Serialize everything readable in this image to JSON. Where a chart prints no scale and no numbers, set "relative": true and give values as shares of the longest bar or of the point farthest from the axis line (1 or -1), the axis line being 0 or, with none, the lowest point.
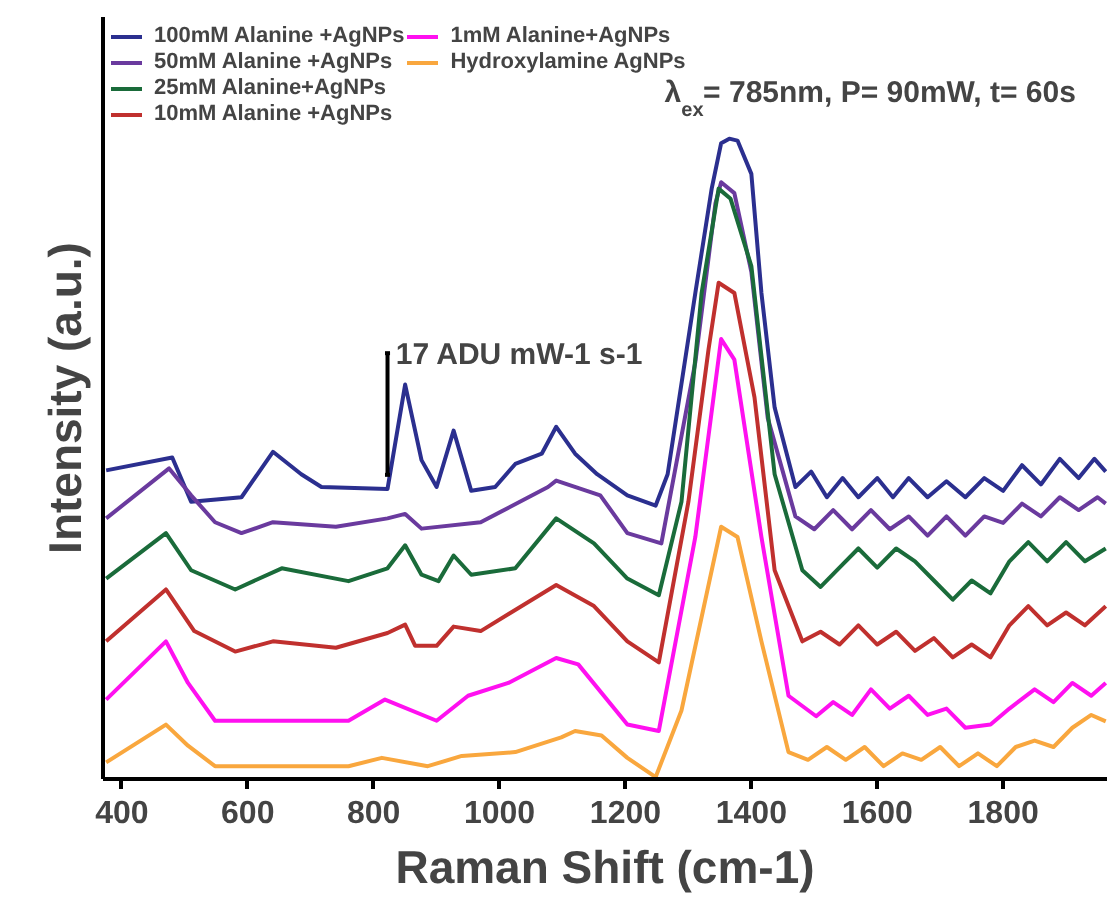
{
  "chart_data": {
    "type": "line",
    "relative": true,
    "xlabel": "Raman Shift (cm-1)",
    "ylabel": "Intensity (a.u.)",
    "xlim": [
      370,
      1965
    ],
    "xticks": [
      400,
      600,
      800,
      1000,
      1200,
      1400,
      1600,
      1800
    ],
    "grid": false,
    "legend": "top left",
    "marker": "none",
    "line_style": "solid",
    "annotations": [
      "λ$_{ex}$=  785nm, P= 90mW, t= 60s",
      "17 ADU mW-1 s-1"
    ],
    "series": [
      {
        "name": "100mM Alanine +AgNPs",
        "color": "#2b2f8f",
        "x": [
          375,
          480,
          510,
          590,
          640,
          685,
          717,
          822,
          850,
          876,
          900,
          927,
          955,
          993,
          1025,
          1067,
          1090,
          1120,
          1155,
          1203,
          1248,
          1267,
          1311,
          1337,
          1352,
          1365,
          1378,
          1400,
          1416,
          1437,
          1470,
          1495,
          1520,
          1545,
          1570,
          1600,
          1625,
          1650,
          1680,
          1710,
          1740,
          1770,
          1800,
          1830,
          1860,
          1890,
          1920,
          1945,
          1963
        ],
        "values": [
          0.482,
          0.502,
          0.433,
          0.44,
          0.511,
          0.476,
          0.456,
          0.453,
          0.616,
          0.498,
          0.456,
          0.544,
          0.45,
          0.456,
          0.492,
          0.508,
          0.55,
          0.508,
          0.476,
          0.443,
          0.427,
          0.476,
          0.759,
          0.922,
          0.993,
          1.0,
          0.997,
          0.945,
          0.759,
          0.58,
          0.456,
          0.48,
          0.44,
          0.47,
          0.44,
          0.47,
          0.44,
          0.47,
          0.44,
          0.465,
          0.44,
          0.47,
          0.45,
          0.49,
          0.46,
          0.5,
          0.47,
          0.5,
          0.48
        ]
      },
      {
        "name": "50mM Alanine +AgNPs",
        "color": "#6a3a9e",
        "x": [
          375,
          475,
          510,
          548,
          590,
          640,
          740,
          822,
          850,
          876,
          970,
          1077,
          1090,
          1160,
          1203,
          1257,
          1311,
          1343,
          1352,
          1373,
          1400,
          1426,
          1470,
          1500,
          1530,
          1560,
          1590,
          1620,
          1650,
          1680,
          1710,
          1740,
          1770,
          1800,
          1830,
          1860,
          1890,
          1920,
          1950,
          1963
        ],
        "values": [
          0.407,
          0.485,
          0.443,
          0.401,
          0.384,
          0.401,
          0.394,
          0.407,
          0.414,
          0.391,
          0.401,
          0.456,
          0.466,
          0.443,
          0.384,
          0.368,
          0.651,
          0.899,
          0.932,
          0.915,
          0.792,
          0.564,
          0.41,
          0.39,
          0.42,
          0.39,
          0.42,
          0.39,
          0.41,
          0.38,
          0.41,
          0.38,
          0.41,
          0.4,
          0.43,
          0.41,
          0.44,
          0.42,
          0.44,
          0.43
        ]
      },
      {
        "name": "25mM Alanine+AgNPs",
        "color": "#1a6b3a",
        "x": [
          375,
          470,
          510,
          580,
          654,
          760,
          822,
          850,
          876,
          903,
          927,
          955,
          1025,
          1090,
          1150,
          1203,
          1253,
          1289,
          1321,
          1348,
          1367,
          1400,
          1437,
          1481,
          1510,
          1540,
          1570,
          1600,
          1630,
          1660,
          1690,
          1720,
          1750,
          1780,
          1810,
          1840,
          1870,
          1900,
          1930,
          1963
        ],
        "values": [
          0.313,
          0.384,
          0.326,
          0.296,
          0.329,
          0.309,
          0.329,
          0.365,
          0.319,
          0.309,
          0.349,
          0.319,
          0.329,
          0.407,
          0.368,
          0.313,
          0.287,
          0.433,
          0.759,
          0.922,
          0.906,
          0.801,
          0.476,
          0.326,
          0.3,
          0.33,
          0.36,
          0.33,
          0.36,
          0.34,
          0.31,
          0.28,
          0.31,
          0.29,
          0.34,
          0.37,
          0.34,
          0.37,
          0.34,
          0.36
        ]
      },
      {
        "name": "10mM Alanine +AgNPs",
        "color": "#c0302e",
        "x": [
          375,
          470,
          515,
          580,
          640,
          740,
          822,
          850,
          866,
          900,
          927,
          970,
          1090,
          1150,
          1203,
          1253,
          1300,
          1332,
          1348,
          1373,
          1405,
          1437,
          1481,
          1510,
          1540,
          1570,
          1600,
          1630,
          1660,
          1690,
          1720,
          1750,
          1780,
          1810,
          1840,
          1870,
          1900,
          1930,
          1963
        ],
        "values": [
          0.215,
          0.296,
          0.231,
          0.199,
          0.215,
          0.205,
          0.228,
          0.241,
          0.208,
          0.208,
          0.238,
          0.231,
          0.303,
          0.27,
          0.215,
          0.182,
          0.433,
          0.671,
          0.775,
          0.759,
          0.596,
          0.326,
          0.215,
          0.23,
          0.21,
          0.24,
          0.21,
          0.23,
          0.2,
          0.22,
          0.19,
          0.21,
          0.19,
          0.24,
          0.27,
          0.24,
          0.26,
          0.24,
          0.27
        ]
      },
      {
        "name": "1mM Alanine+AgNPs",
        "color": "#ff10f0",
        "x": [
          375,
          470,
          505,
          548,
          654,
          760,
          818,
          900,
          950,
          1014,
          1090,
          1125,
          1203,
          1253,
          1311,
          1352,
          1373,
          1416,
          1459,
          1503,
          1530,
          1560,
          1590,
          1620,
          1650,
          1680,
          1710,
          1740,
          1780,
          1810,
          1850,
          1880,
          1910,
          1940,
          1963
        ],
        "values": [
          0.124,
          0.215,
          0.15,
          0.091,
          0.091,
          0.091,
          0.124,
          0.091,
          0.13,
          0.15,
          0.189,
          0.179,
          0.085,
          0.075,
          0.378,
          0.687,
          0.655,
          0.378,
          0.13,
          0.098,
          0.12,
          0.1,
          0.14,
          0.11,
          0.13,
          0.1,
          0.11,
          0.08,
          0.085,
          0.11,
          0.14,
          0.12,
          0.15,
          0.13,
          0.15
        ]
      },
      {
        "name": "Hydroxylamine AgNPs",
        "color": "#f9a73e",
        "x": [
          375,
          470,
          505,
          548,
          760,
          813,
          886,
          940,
          1025,
          1098,
          1120,
          1162,
          1203,
          1248,
          1289,
          1332,
          1352,
          1378,
          1416,
          1459,
          1490,
          1520,
          1550,
          1580,
          1610,
          1640,
          1670,
          1700,
          1730,
          1760,
          1790,
          1820,
          1850,
          1880,
          1910,
          1940,
          1963
        ],
        "values": [
          0.026,
          0.085,
          0.052,
          0.02,
          0.02,
          0.033,
          0.02,
          0.036,
          0.042,
          0.065,
          0.075,
          0.068,
          0.033,
          0.003,
          0.107,
          0.303,
          0.394,
          0.378,
          0.215,
          0.042,
          0.03,
          0.05,
          0.03,
          0.05,
          0.02,
          0.04,
          0.03,
          0.05,
          0.02,
          0.04,
          0.02,
          0.05,
          0.06,
          0.05,
          0.08,
          0.1,
          0.09
        ]
      }
    ]
  }
}
